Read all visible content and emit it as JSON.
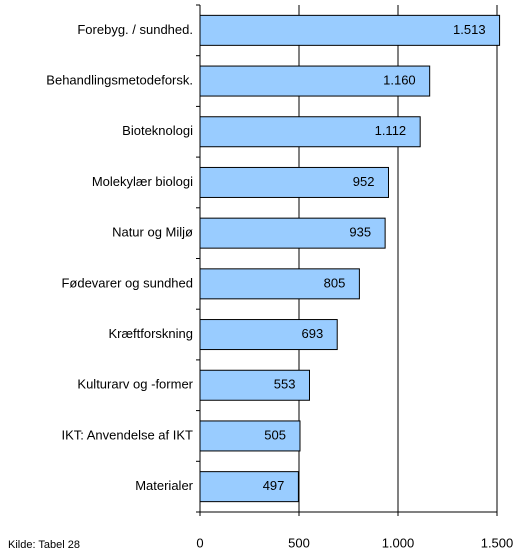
{
  "chart_data": {
    "type": "barh",
    "categories": [
      "Forebyg. / sundhed.",
      "Behandlingsmetodeforsk.",
      "Bioteknologi",
      "Molekylær biologi",
      "Natur og Miljø",
      "Fødevarer og sundhed",
      "Kræftforskning",
      "Kulturarv og -former",
      "IKT: Anvendelse af IKT",
      "Materialer"
    ],
    "values": [
      1513,
      1160,
      1112,
      952,
      935,
      805,
      693,
      553,
      505,
      497
    ],
    "value_labels": [
      "1.513",
      "1.160",
      "1.112",
      "952",
      "935",
      "805",
      "693",
      "553",
      "505",
      "497"
    ],
    "color": "#99ccff",
    "xlim": [
      0,
      1500
    ],
    "xticks": [
      0,
      500,
      {
        "value": 1000,
        "label": "1.000"
      },
      {
        "value": 1500,
        "label": "1.500"
      }
    ],
    "grid": true,
    "source": "Kilde: Tabel 28"
  }
}
